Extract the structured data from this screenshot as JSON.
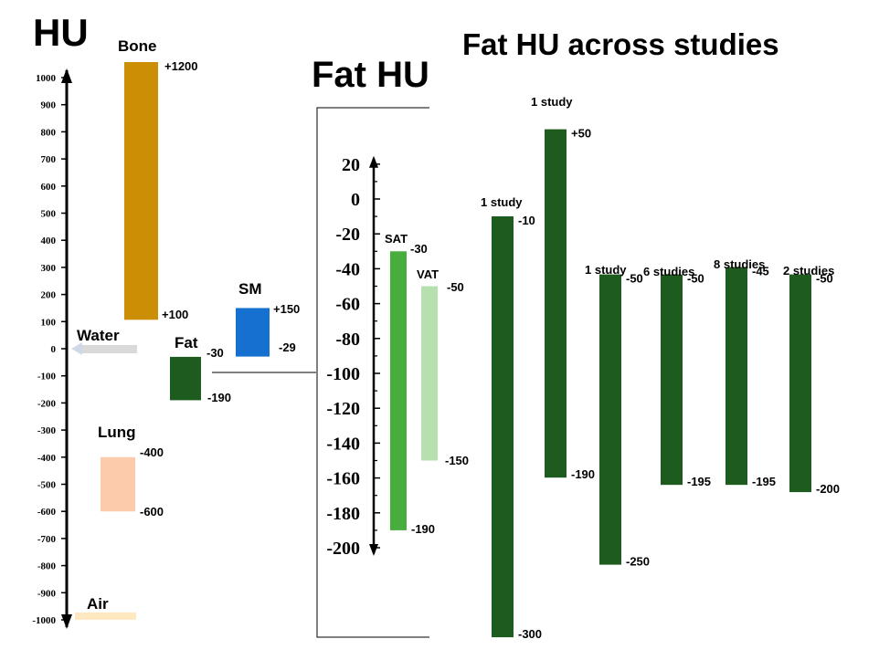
{
  "titles": {
    "hu": "HU",
    "fat_hu": "Fat HU",
    "across": "Fat HU across studies"
  },
  "chart_data": [
    {
      "type": "bar",
      "title": "HU",
      "ylabel": "HU",
      "ylim": [
        -1000,
        1000
      ],
      "yticks": [
        1000,
        900,
        800,
        700,
        600,
        500,
        400,
        300,
        200,
        100,
        0,
        -100,
        -200,
        -300,
        -400,
        -500,
        -600,
        -700,
        -800,
        -900,
        -1000
      ],
      "bars": [
        {
          "name": "Bone",
          "high": 1200,
          "low": 100,
          "high_label": "+1200",
          "low_label": "+100",
          "color": "#cc8e05"
        },
        {
          "name": "Water",
          "high": 0,
          "low": 0,
          "color": "#d9d9d9"
        },
        {
          "name": "Fat",
          "high": -30,
          "low": -190,
          "high_label": "-30",
          "low_label": "-190",
          "color": "#1e5b1e"
        },
        {
          "name": "SM",
          "high": 150,
          "low": -29,
          "high_label": "+150",
          "low_label": "-29",
          "color": "#1570cf"
        },
        {
          "name": "Lung",
          "high": -400,
          "low": -600,
          "high_label": "-400",
          "low_label": "-600",
          "color": "#fccbab"
        },
        {
          "name": "Air",
          "high": -1000,
          "low": -1000,
          "color": "#fde8bf"
        }
      ]
    },
    {
      "type": "bar",
      "title": "Fat HU",
      "ylabel": "Fat HU",
      "ylim": [
        -200,
        20
      ],
      "yticks": [
        20,
        0,
        -20,
        -40,
        -60,
        -80,
        -100,
        -120,
        -140,
        -160,
        -180,
        -200
      ],
      "bars": [
        {
          "name": "SAT",
          "high": -30,
          "low": -190,
          "high_label": "-30",
          "low_label": "-190",
          "color": "#47ae3d"
        },
        {
          "name": "VAT",
          "high": -50,
          "low": -150,
          "high_label": "-50",
          "low_label": "-150",
          "color": "#b6e0ae"
        }
      ]
    },
    {
      "type": "bar",
      "title": "Fat HU across studies",
      "bars": [
        {
          "name": "1 study",
          "high": -10,
          "low": -300,
          "high_label": "-10",
          "low_label": "-300",
          "color": "#1e5b1e"
        },
        {
          "name": "1 study",
          "high": 50,
          "low": -190,
          "high_label": "+50",
          "low_label": "-190",
          "color": "#1e5b1e"
        },
        {
          "name": "1 study",
          "high": -50,
          "low": -250,
          "high_label": "-50",
          "low_label": "-250",
          "color": "#1e5b1e"
        },
        {
          "name": "6 studies",
          "high": -50,
          "low": -195,
          "high_label": "-50",
          "low_label": "-195",
          "color": "#1e5b1e"
        },
        {
          "name": "8 studies",
          "high": -45,
          "low": -195,
          "high_label": "-45",
          "low_label": "-195",
          "color": "#1e5b1e"
        },
        {
          "name": "2 studies",
          "high": -50,
          "low": -200,
          "high_label": "-50",
          "low_label": "-200",
          "color": "#1e5b1e"
        }
      ]
    }
  ]
}
